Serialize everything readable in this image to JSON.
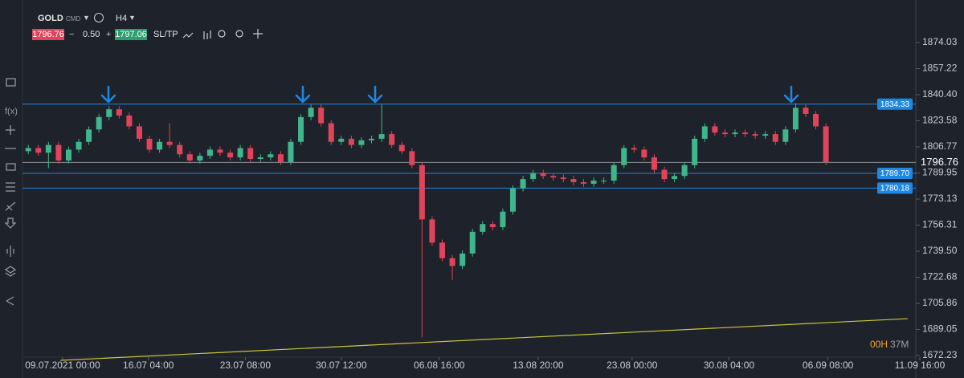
{
  "toolbar": {
    "symbol": "GOLD",
    "type": "CMD",
    "timeframe": "H4",
    "bid": "1796.76",
    "lot": "0.50",
    "ask": "1797.06",
    "sltp": "SL/TP"
  },
  "timer": {
    "hours": "00H",
    "minutes": "37M"
  },
  "chart_data": {
    "type": "candlestick",
    "up_color": "#3fb68b",
    "down_color": "#e0445a",
    "open": [
      1804,
      1806,
      1803,
      1808,
      1798,
      1805,
      1810,
      1818,
      1826,
      1831,
      1827,
      1820,
      1812,
      1805,
      1810,
      1808,
      1802,
      1798,
      1801,
      1805,
      1803,
      1800,
      1806,
      1799,
      1800,
      1802,
      1797,
      1810,
      1826,
      1832,
      1822,
      1810,
      1812,
      1808,
      1811,
      1812,
      1815,
      1808,
      1804,
      1795,
      1760,
      1745,
      1735,
      1730,
      1738,
      1752,
      1757,
      1755,
      1765,
      1780,
      1786,
      1790,
      1788,
      1787,
      1786,
      1784,
      1783,
      1785,
      1785,
      1795,
      1806,
      1805,
      1800,
      1792,
      1786,
      1788,
      1795,
      1812,
      1820,
      1816,
      1815,
      1816,
      1815,
      1814,
      1815,
      1810,
      1818,
      1832,
      1828,
      1820
    ],
    "high": [
      1808,
      1808,
      1810,
      1810,
      1807,
      1812,
      1820,
      1828,
      1833,
      1833,
      1829,
      1822,
      1814,
      1812,
      1822,
      1810,
      1804,
      1803,
      1807,
      1807,
      1805,
      1808,
      1808,
      1802,
      1804,
      1804,
      1812,
      1828,
      1834,
      1834,
      1824,
      1814,
      1814,
      1813,
      1814,
      1834,
      1817,
      1810,
      1806,
      1797,
      1762,
      1747,
      1737,
      1740,
      1754,
      1759,
      1759,
      1767,
      1782,
      1788,
      1792,
      1792,
      1790,
      1789,
      1788,
      1786,
      1787,
      1787,
      1797,
      1808,
      1808,
      1807,
      1802,
      1794,
      1790,
      1797,
      1814,
      1822,
      1822,
      1818,
      1818,
      1818,
      1817,
      1817,
      1817,
      1820,
      1835,
      1834,
      1830,
      1822
    ],
    "low": [
      1802,
      1801,
      1793,
      1796,
      1796,
      1803,
      1808,
      1816,
      1824,
      1825,
      1818,
      1810,
      1803,
      1803,
      1806,
      1800,
      1796,
      1796,
      1799,
      1801,
      1798,
      1798,
      1797,
      1797,
      1798,
      1795,
      1795,
      1808,
      1824,
      1820,
      1808,
      1808,
      1806,
      1806,
      1809,
      1810,
      1806,
      1802,
      1793,
      1684,
      1743,
      1733,
      1721,
      1728,
      1736,
      1750,
      1753,
      1753,
      1763,
      1778,
      1784,
      1786,
      1785,
      1784,
      1782,
      1781,
      1781,
      1783,
      1783,
      1793,
      1803,
      1798,
      1790,
      1784,
      1784,
      1786,
      1793,
      1810,
      1814,
      1813,
      1813,
      1813,
      1812,
      1812,
      1808,
      1808,
      1816,
      1826,
      1818,
      1795
    ],
    "close": [
      1806,
      1803,
      1808,
      1798,
      1805,
      1810,
      1818,
      1826,
      1831,
      1827,
      1820,
      1812,
      1805,
      1810,
      1808,
      1802,
      1798,
      1801,
      1805,
      1803,
      1800,
      1806,
      1799,
      1800,
      1802,
      1797,
      1810,
      1826,
      1832,
      1822,
      1810,
      1812,
      1808,
      1811,
      1812,
      1815,
      1808,
      1804,
      1795,
      1760,
      1745,
      1735,
      1730,
      1738,
      1752,
      1757,
      1755,
      1765,
      1780,
      1786,
      1790,
      1788,
      1787,
      1786,
      1784,
      1783,
      1785,
      1785,
      1795,
      1806,
      1805,
      1800,
      1792,
      1786,
      1788,
      1795,
      1812,
      1820,
      1816,
      1815,
      1816,
      1815,
      1814,
      1815,
      1810,
      1818,
      1832,
      1828,
      1820,
      1797
    ],
    "ylim": [
      1668.6,
      1896.3
    ],
    "yticks": [
      1874.03,
      1857.22,
      {
        "value": 1840.4,
        "label": "1840.40"
      },
      1823.58,
      1806.77,
      1789.95,
      1773.13,
      1756.31,
      {
        "value": 1739.5,
        "label": "1739.50"
      },
      1722.68,
      1705.86,
      1689.05,
      1672.23
    ],
    "xlim": [
      -2.8,
      88.3
    ],
    "xticks": [
      {
        "value": 3.4,
        "label": "09.07.2021 00:00"
      },
      {
        "value": 11.9,
        "label": "16.07 04:00"
      },
      {
        "value": 21.5,
        "label": "23.07 08:00"
      },
      {
        "value": 31.0,
        "label": "30.07 12:00"
      },
      {
        "value": 40.7,
        "label": "06.08 16:00"
      },
      {
        "value": 50.5,
        "label": "13.08 20:00"
      },
      {
        "value": 59.8,
        "label": "23.08 00:00"
      },
      {
        "value": 69.4,
        "label": "30.08 04:00"
      },
      {
        "value": 79.2,
        "label": "06.09 08:00"
      },
      {
        "value": 88.3,
        "label": "11.09 16:00"
      }
    ],
    "level_color": "#1e88e5",
    "levels": [
      1834.33,
      {
        "value": 1789.7,
        "label": "1789.70"
      },
      1780.18
    ],
    "current_price": 1796.76,
    "current_color": "#8a8f96",
    "trendline": {
      "color": "#c8c83c",
      "x": [
        3.2,
        87.1
      ],
      "y": [
        1669.1,
        1696.0
      ]
    }
  }
}
